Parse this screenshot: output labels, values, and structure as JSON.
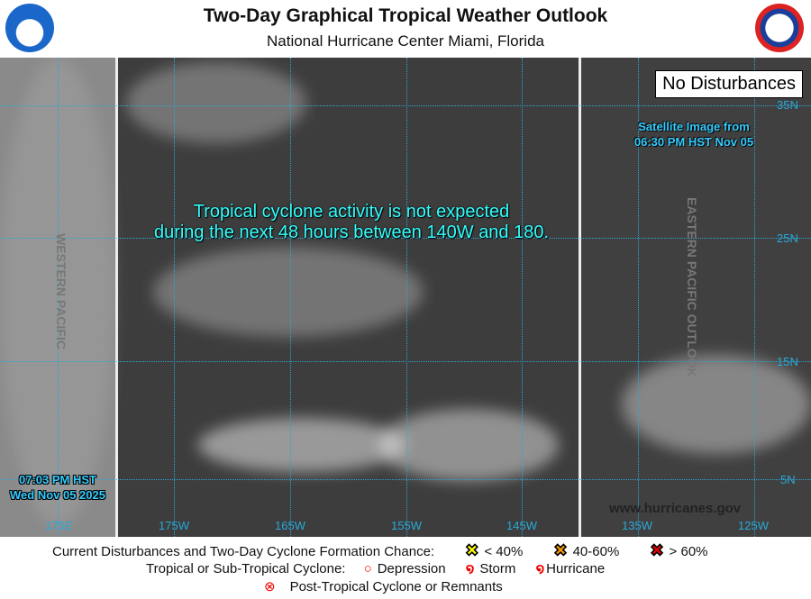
{
  "header": {
    "title": "Two-Day Graphical Tropical Weather Outlook",
    "subtitle": "National Hurricane Center  Miami, Florida",
    "left_logo": "NOAA",
    "right_logo": "NATIONAL WEATHER SERVICE"
  },
  "map": {
    "status_box": "No Disturbances",
    "message_line1": "Tropical cyclone activity is not expected",
    "message_line2": "during the next 48 hours between 140W and 180.",
    "satellite_line1": "Satellite Image from",
    "satellite_line2": "06:30 PM HST Nov 05",
    "time_line1": "07:03 PM HST",
    "time_line2": "Wed Nov 05 2025",
    "western_pacific_label": "WESTERN PACIFIC",
    "eastern_pacific_label": "EASTERN PACIFIC OUTLOOK",
    "website": "www.hurricanes.gov",
    "lon_labels": [
      "175E",
      "175W",
      "165W",
      "155W",
      "145W",
      "135W",
      "125W"
    ],
    "lat_labels": [
      "35N",
      "25N",
      "15N",
      "5N"
    ],
    "grid_color": "#29a9d8"
  },
  "legend": {
    "row1_label": "Current Disturbances and Two-Day Cyclone Formation Chance:",
    "low": "< 40%",
    "medium": "40-60%",
    "high": "> 60%",
    "low_color": "#ffff00",
    "medium_color": "#ff9900",
    "high_color": "#ee0000",
    "row2_label": "Tropical or Sub-Tropical Cyclone:",
    "depression": "Depression",
    "storm": "Storm",
    "hurricane": "Hurricane",
    "row3_label": "Post-Tropical Cyclone or Remnants"
  }
}
